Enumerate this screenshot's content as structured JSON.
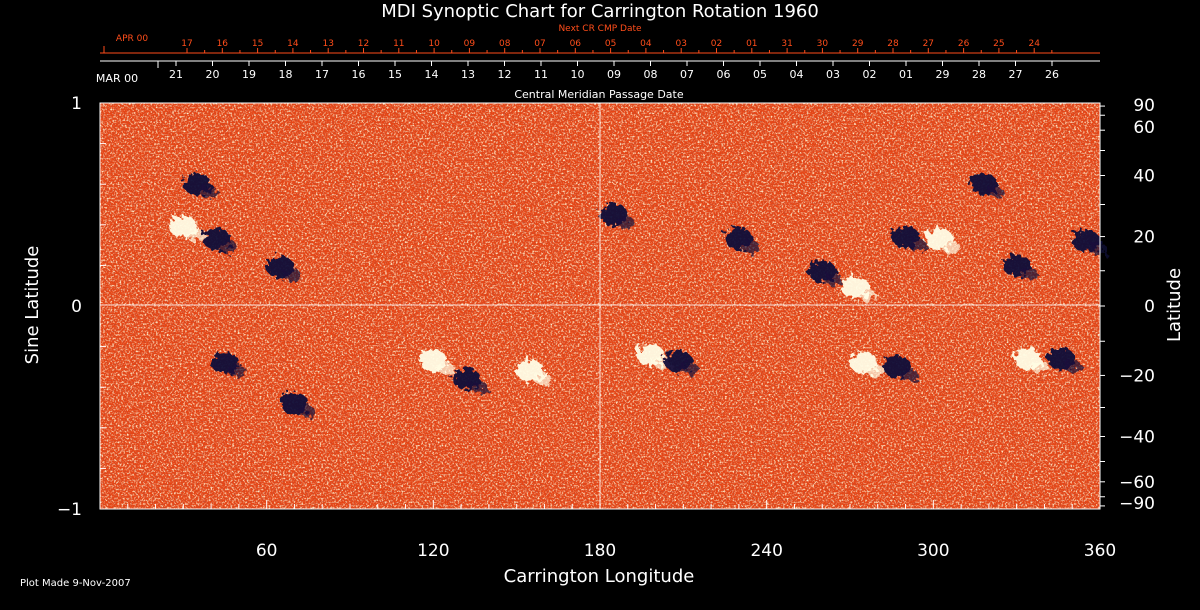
{
  "chart_data": {
    "type": "heatmap",
    "title": "MDI Synoptic Chart for Carrington Rotation 1960",
    "xlabel": "Carrington Longitude",
    "ylabel_left": "Sine Latitude",
    "ylabel_right": "Latitude",
    "xlim": [
      0,
      360
    ],
    "ylim": [
      -1,
      1
    ],
    "x_ticks": [
      60,
      120,
      180,
      240,
      300,
      360
    ],
    "y_ticks_left": [
      "1",
      "0",
      "−1"
    ],
    "y_ticks_right": [
      {
        "deg": 90,
        "label": "90"
      },
      {
        "deg": 60,
        "label": "60"
      },
      {
        "deg": 40,
        "label": "40"
      },
      {
        "deg": 20,
        "label": "20"
      },
      {
        "deg": 0,
        "label": "0"
      },
      {
        "deg": -20,
        "label": "−20"
      },
      {
        "deg": -40,
        "label": "−40"
      },
      {
        "deg": -60,
        "label": "−60"
      },
      {
        "deg": -90,
        "label": "−90"
      }
    ],
    "center_meridian_label": "Central Meridian Passage Date",
    "cmp_month_label": "MAR 00",
    "cmp_dates": [
      "21",
      "20",
      "19",
      "18",
      "17",
      "16",
      "15",
      "14",
      "13",
      "12",
      "11",
      "10",
      "09",
      "08",
      "07",
      "06",
      "05",
      "04",
      "03",
      "02",
      "01",
      "29",
      "28",
      "27",
      "26"
    ],
    "next_cr_title": "Next CR CMP Date",
    "next_cr_month_label": "APR 00",
    "next_cr_dates": [
      "17",
      "16",
      "15",
      "14",
      "13",
      "12",
      "11",
      "10",
      "09",
      "08",
      "07",
      "06",
      "05",
      "04",
      "03",
      "02",
      "01",
      "31",
      "30",
      "29",
      "28",
      "27",
      "26",
      "25",
      "24"
    ],
    "colors": {
      "background": "#000000",
      "field": "#e64515",
      "positive_polarity": "#fffde6",
      "negative_polarity": "#12103a",
      "axis": "#ffffff",
      "next_cr": "#ff4d1a"
    },
    "active_regions": [
      {
        "lon": 65,
        "sinlat": 0.19,
        "polarity": "negative"
      },
      {
        "lon": 42,
        "sinlat": 0.33,
        "polarity": "negative"
      },
      {
        "lon": 30,
        "sinlat": 0.39,
        "polarity": "positive"
      },
      {
        "lon": 35,
        "sinlat": 0.6,
        "polarity": "negative"
      },
      {
        "lon": 45,
        "sinlat": -0.28,
        "polarity": "negative"
      },
      {
        "lon": 70,
        "sinlat": -0.48,
        "polarity": "negative"
      },
      {
        "lon": 120,
        "sinlat": -0.27,
        "polarity": "positive"
      },
      {
        "lon": 132,
        "sinlat": -0.36,
        "polarity": "negative"
      },
      {
        "lon": 155,
        "sinlat": -0.32,
        "polarity": "positive"
      },
      {
        "lon": 198,
        "sinlat": -0.24,
        "polarity": "positive"
      },
      {
        "lon": 208,
        "sinlat": -0.27,
        "polarity": "negative"
      },
      {
        "lon": 275,
        "sinlat": -0.28,
        "polarity": "positive"
      },
      {
        "lon": 287,
        "sinlat": -0.3,
        "polarity": "negative"
      },
      {
        "lon": 334,
        "sinlat": -0.26,
        "polarity": "positive"
      },
      {
        "lon": 346,
        "sinlat": -0.26,
        "polarity": "negative"
      },
      {
        "lon": 230,
        "sinlat": 0.33,
        "polarity": "negative"
      },
      {
        "lon": 290,
        "sinlat": 0.34,
        "polarity": "negative"
      },
      {
        "lon": 302,
        "sinlat": 0.33,
        "polarity": "positive"
      },
      {
        "lon": 318,
        "sinlat": 0.6,
        "polarity": "negative"
      },
      {
        "lon": 260,
        "sinlat": 0.17,
        "polarity": "negative"
      },
      {
        "lon": 330,
        "sinlat": 0.2,
        "polarity": "negative"
      },
      {
        "lon": 355,
        "sinlat": 0.32,
        "polarity": "negative"
      },
      {
        "lon": 185,
        "sinlat": 0.45,
        "polarity": "negative"
      },
      {
        "lon": 272,
        "sinlat": 0.09,
        "polarity": "positive"
      }
    ]
  },
  "footer": {
    "plot_made": "Plot Made  9-Nov-2007"
  }
}
